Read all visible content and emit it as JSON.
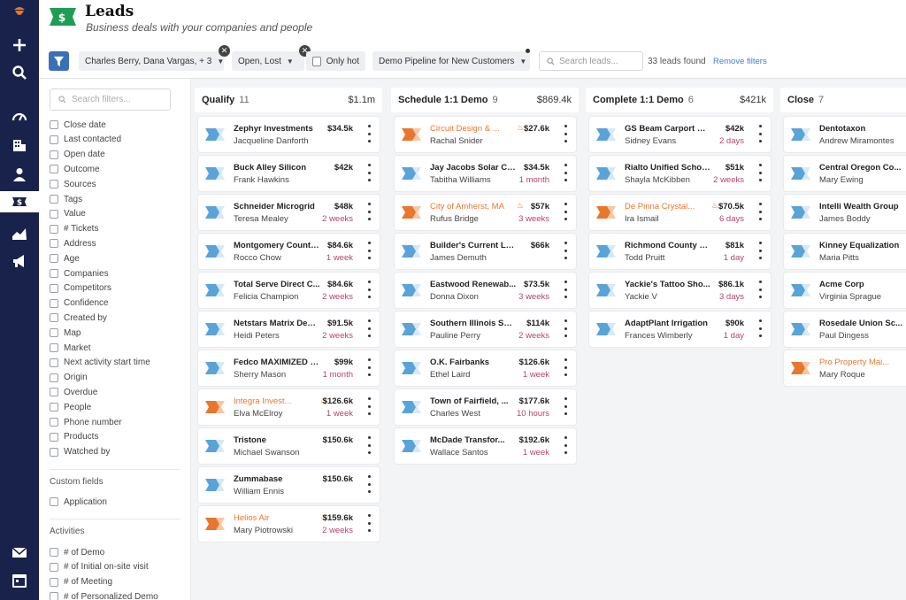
{
  "header": {
    "title": "Leads",
    "subtitle": "Business deals with your companies and people"
  },
  "rail": {
    "top_icons": [
      "acorn-logo-icon",
      "plus-icon",
      "search-icon"
    ],
    "nav_icons": [
      "gauge-icon",
      "building-icon",
      "person-icon",
      "dollar-icon",
      "chart-icon",
      "megaphone-icon"
    ],
    "bottom_icons": [
      "mail-icon",
      "calendar-icon"
    ],
    "active": "dollar-icon"
  },
  "filters": {
    "people_chip": "Charles Berry, Dana Vargas, + 3",
    "status_chip": "Open, Lost",
    "only_hot": "Only hot",
    "pipeline_chip": "Demo Pipeline for New Customers",
    "search_placeholder": "Search leads...",
    "found_text": "33 leads found",
    "remove_filters": "Remove filters"
  },
  "sidebar": {
    "search_placeholder": "Search filters...",
    "items": [
      "Close date",
      "Last contacted",
      "Open date",
      "Outcome",
      "Sources",
      "Tags",
      "Value",
      "# Tickets",
      "Address",
      "Age",
      "Companies",
      "Competitors",
      "Confidence",
      "Created by",
      "Map",
      "Market",
      "Next activity start time",
      "Origin",
      "Overdue",
      "People",
      "Phone number",
      "Products",
      "Watched by"
    ],
    "custom_fields_title": "Custom fields",
    "custom_fields": [
      "Application"
    ],
    "activities_title": "Activities",
    "activities": [
      "# of Demo",
      "# of Initial on-site visit",
      "# of Meeting",
      "# of Personalized Demo"
    ]
  },
  "colors": {
    "rail": "#19224a",
    "accent": "#3b7dd8",
    "hot": "#e8772e",
    "time": "#b5446c"
  },
  "columns": [
    {
      "name": "Qualify",
      "count": "11",
      "amount": "$1.1m",
      "cards": [
        {
          "company": "Zephyr Investments",
          "person": "Jacqueline Danforth",
          "value": "$34.5k",
          "time": "",
          "hot": false
        },
        {
          "company": "Buck Alley Silicon",
          "person": "Frank Hawkins",
          "value": "$42k",
          "time": "",
          "hot": false
        },
        {
          "company": "Schneider Microgrid",
          "person": "Teresa Mealey",
          "value": "$48k",
          "time": "2 weeks",
          "hot": false
        },
        {
          "company": "Montgomery County...",
          "person": "Rocco Chow",
          "value": "$84.6k",
          "time": "1 week",
          "hot": false
        },
        {
          "company": "Total Serve Direct C...",
          "person": "Felicia Champion",
          "value": "$84.6k",
          "time": "2 weeks",
          "hot": false
        },
        {
          "company": "Netstars Matrix Desi...",
          "person": "Heidi Peters",
          "value": "$91.5k",
          "time": "2 weeks",
          "hot": false
        },
        {
          "company": "Fedco MAXIMIZED PO...",
          "person": "Sherry Mason",
          "value": "$99k",
          "time": "1 month",
          "hot": false
        },
        {
          "company": "Integra Invest...",
          "person": "Elva McElroy",
          "value": "$126.6k",
          "time": "1 week",
          "hot": true
        },
        {
          "company": "Tristone",
          "person": "Michael Swanson",
          "value": "$150.6k",
          "time": "",
          "hot": false
        },
        {
          "company": "Zummabase",
          "person": "William Ennis",
          "value": "$150.6k",
          "time": "",
          "hot": false
        },
        {
          "company": "Helios Air",
          "person": "Mary Piotrowski",
          "value": "$159.6k",
          "time": "2 weeks",
          "hot": true
        }
      ]
    },
    {
      "name": "Schedule 1:1 Demo",
      "count": "9",
      "amount": "$869.4k",
      "cards": [
        {
          "company": "Circuit Design & ...",
          "person": "Rachal Snider",
          "value": "$27.6k",
          "time": "",
          "hot": true
        },
        {
          "company": "Jay Jacobs Solar Ce...",
          "person": "Tabitha Williams",
          "value": "$34.5k",
          "time": "1 month",
          "hot": false
        },
        {
          "company": "City of Amherst, MA",
          "person": "Rufus Bridge",
          "value": "$57k",
          "time": "3 weeks",
          "hot": true
        },
        {
          "company": "Builder's Current LLC",
          "person": "James Demuth",
          "value": "$66k",
          "time": "",
          "hot": false
        },
        {
          "company": "Eastwood Renewab...",
          "person": "Donna Dixon",
          "value": "$73.5k",
          "time": "3 weeks",
          "hot": false
        },
        {
          "company": "Southern Illinois Solar",
          "person": "Pauline Perry",
          "value": "$114k",
          "time": "2 weeks",
          "hot": false
        },
        {
          "company": "O.K. Fairbanks",
          "person": "Ethel Laird",
          "value": "$126.6k",
          "time": "1 week",
          "hot": false
        },
        {
          "company": "Town of Fairfield, ...",
          "person": "Charles West",
          "value": "$177.6k",
          "time": "10 hours",
          "hot": false
        },
        {
          "company": "McDade Transfor...",
          "person": "Wallace Santos",
          "value": "$192.6k",
          "time": "1 week",
          "hot": false
        }
      ]
    },
    {
      "name": "Complete 1:1 Demo",
      "count": "6",
      "amount": "$421k",
      "cards": [
        {
          "company": "GS Beam Carport Des...",
          "person": "Sidney Evans",
          "value": "$42k",
          "time": "2 days",
          "hot": false
        },
        {
          "company": "Rialto Unified School ...",
          "person": "Shayla McKibben",
          "value": "$51k",
          "time": "2 weeks",
          "hot": false
        },
        {
          "company": "De Pinna Crystal...",
          "person": "Ira Ismail",
          "value": "$70.5k",
          "time": "6 days",
          "hot": true
        },
        {
          "company": "Richmond County En...",
          "person": "Todd Pruitt",
          "value": "$81k",
          "time": "1 day",
          "hot": false
        },
        {
          "company": "Yackie's Tattoo Sho...",
          "person": "Yackie V",
          "value": "$86.1k",
          "time": "3 days",
          "hot": false
        },
        {
          "company": "AdaptPlant Irrigation",
          "person": "Frances Wimberly",
          "value": "$90k",
          "time": "1 day",
          "hot": false
        }
      ]
    },
    {
      "name": "Close",
      "count": "7",
      "amount": "",
      "cards": [
        {
          "company": "Dentotaxon",
          "person": "Andrew Miramontes",
          "value": "",
          "time": "",
          "hot": false
        },
        {
          "company": "Central Oregon Co...",
          "person": "Mary Ewing",
          "value": "",
          "time": "",
          "hot": false
        },
        {
          "company": "Intelli Wealth Group",
          "person": "James Boddy",
          "value": "",
          "time": "",
          "hot": false
        },
        {
          "company": "Kinney Equalization",
          "person": "Maria Pitts",
          "value": "",
          "time": "",
          "hot": false
        },
        {
          "company": "Acme Corp",
          "person": "Virginia Sprague",
          "value": "",
          "time": "",
          "hot": false
        },
        {
          "company": "Rosedale Union Sc...",
          "person": "Paul Dingess",
          "value": "",
          "time": "",
          "hot": false
        },
        {
          "company": "Pro Property Mai...",
          "person": "Mary Roque",
          "value": "",
          "time": "",
          "hot": true
        }
      ]
    }
  ]
}
